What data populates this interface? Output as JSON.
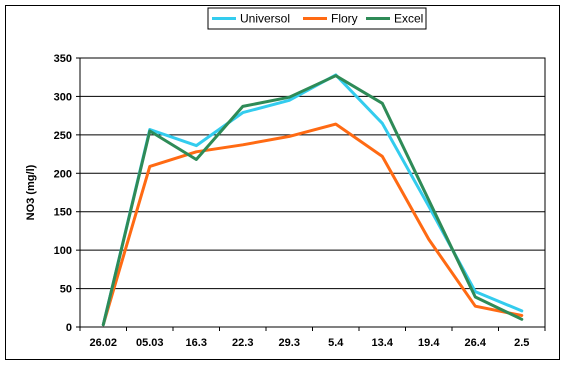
{
  "chart_data": {
    "type": "line",
    "categories": [
      "26.02",
      "05.03",
      "16.3",
      "22.3",
      "29.3",
      "5.4",
      "13.4",
      "19.4",
      "26.4",
      "2.5"
    ],
    "ylabel": "NO3 (mg/l)",
    "xlabel": "",
    "ylim": [
      0,
      350
    ],
    "yticks": [
      0,
      50,
      100,
      150,
      200,
      250,
      300,
      350
    ],
    "grid": true,
    "legend_position": "top",
    "series": [
      {
        "name": "Universol",
        "color": "#33CCEE",
        "values": [
          3,
          257,
          236,
          279,
          295,
          328,
          265,
          157,
          46,
          21
        ]
      },
      {
        "name": "Flory",
        "color": "#FF6A13",
        "values": [
          3,
          209,
          228,
          237,
          248,
          264,
          222,
          114,
          27,
          15
        ]
      },
      {
        "name": "Excel",
        "color": "#2E8B57",
        "values": [
          3,
          255,
          218,
          287,
          299,
          327,
          291,
          165,
          39,
          10
        ]
      }
    ]
  }
}
